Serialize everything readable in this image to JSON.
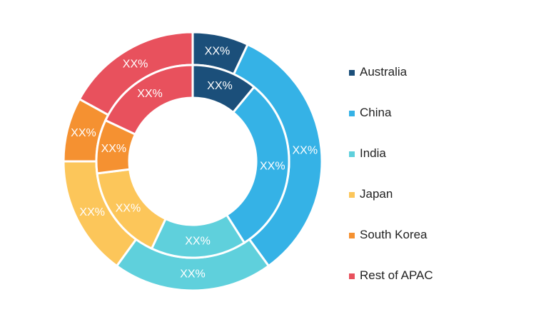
{
  "chart_data": {
    "type": "pie",
    "style": "double-ring-donut",
    "categories": [
      "Australia",
      "China",
      "India",
      "Japan",
      "South Korea",
      "Rest of APAC"
    ],
    "colors": [
      "#1b4f7a",
      "#35b2e6",
      "#5fd0dc",
      "#fcc65a",
      "#f59131",
      "#e8515d"
    ],
    "series": [
      {
        "ring": "outer",
        "values": [
          7,
          33,
          20,
          15,
          8,
          17
        ],
        "labels": [
          "XX%",
          "XX%",
          "XX%",
          "XX%",
          "XX%",
          "XX%"
        ]
      },
      {
        "ring": "inner",
        "values": [
          11,
          30,
          16,
          16,
          9,
          18
        ],
        "labels": [
          "XX%",
          "XX%",
          "XX%",
          "XX%",
          "XX%",
          "XX%"
        ]
      }
    ],
    "legend_position": "right"
  }
}
